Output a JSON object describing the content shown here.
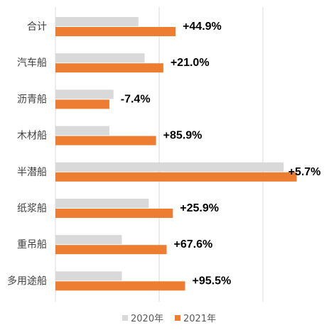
{
  "chart_data": {
    "type": "bar",
    "orientation": "horizontal",
    "categories": [
      "合计",
      "汽车船",
      "沥青船",
      "木材船",
      "半潜船",
      "纸浆船",
      "重吊船",
      "多用途船"
    ],
    "series": [
      {
        "name": "2020年",
        "color": "#d9d9d9",
        "values": [
          40,
          43,
          28,
          26,
          110,
          45,
          32,
          32
        ]
      },
      {
        "name": "2021年",
        "color": "#ed7d31",
        "values": [
          57.9,
          52,
          26,
          48.5,
          116.3,
          56.6,
          53.6,
          62.5
        ]
      }
    ],
    "annotations": [
      "+44.9%",
      "+21.0%",
      "-7.4%",
      "+85.9%",
      "+5.7%",
      "+25.9%",
      "+67.6%",
      "+95.5%"
    ],
    "xlim": [
      0,
      125
    ],
    "gridlines": [
      0,
      50,
      100
    ],
    "legend_position": "bottom"
  }
}
